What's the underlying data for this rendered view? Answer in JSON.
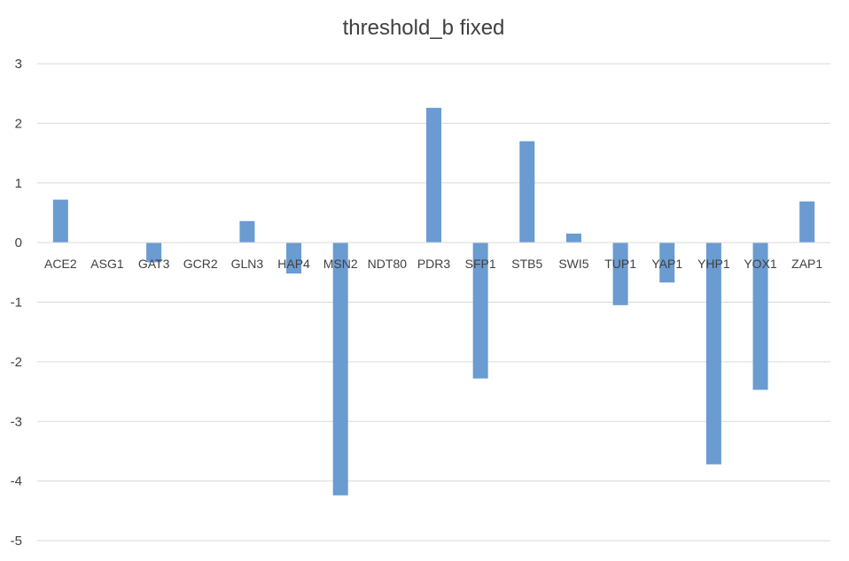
{
  "chart_data": {
    "type": "bar",
    "title": "threshold_b fixed",
    "xlabel": "",
    "ylabel": "",
    "ylim": [
      -5,
      3
    ],
    "yticks": [
      3,
      2,
      1,
      0,
      -1,
      -2,
      -3,
      -4,
      -5
    ],
    "grid": true,
    "legend": "none",
    "bar_color": "#6a9bd1",
    "categories": [
      "ACE2",
      "ASG1",
      "GAT3",
      "GCR2",
      "GLN3",
      "HAP4",
      "MSN2",
      "NDT80",
      "PDR3",
      "SFP1",
      "STB5",
      "SWI5",
      "TUP1",
      "YAP1",
      "YHP1",
      "YOX1",
      "ZAP1"
    ],
    "values": [
      0.72,
      0,
      -0.33,
      0,
      0.36,
      -0.52,
      -4.24,
      0,
      2.26,
      -2.28,
      1.7,
      0.15,
      -1.05,
      -0.67,
      -3.72,
      -2.47,
      0.69
    ]
  }
}
